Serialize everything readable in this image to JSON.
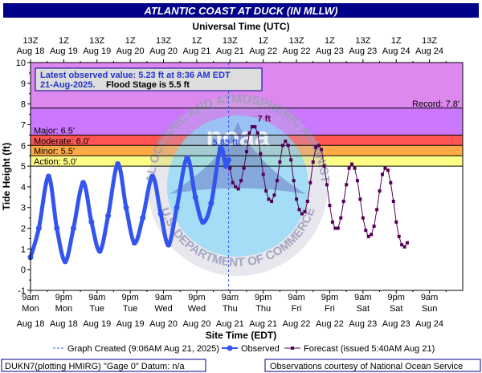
{
  "header": {
    "title": "ATLANTIC COAST AT DUCK (IN MLLW)",
    "top_axis_title": "Universal Time (UTC)",
    "bottom_axis_title": "Site Time (EDT)",
    "y_axis_title": "Tide Height (ft)"
  },
  "info_box": {
    "line1": "Latest observed value: 5.23 ft at 8:36 AM EDT",
    "line2_date": "21-Aug-2025.",
    "line2_flood": "Flood Stage is 5.5 ft"
  },
  "legend": {
    "graph_created": "Graph Created (9:06AM Aug 21, 2025)",
    "observed": "Observed",
    "forecast": "Forecast (issued 5:40AM Aug 21)"
  },
  "footer": {
    "left": "DUKN7(plotting HMIRG) \"Gage 0\" Datum: n/a",
    "right": "Observations courtesy of National Ocean Service"
  },
  "watermark": {
    "outer_text": "NATIONAL OCEANIC AND ATMOSPHERIC ADMINISTRATION",
    "inner_text": "U.S. DEPARTMENT OF COMMERCE",
    "logo": "noaa"
  },
  "colors": {
    "record_band": "#dd88ee",
    "major_band": "#cc77ff",
    "moderate_band": "#ff5555",
    "minor_band": "#ffaa44",
    "action_band": "#ffff88",
    "observed": "#3355ee",
    "forecast": "#550055",
    "plot_bg": "#ffffff"
  },
  "chart_data": {
    "type": "line",
    "x_unit": "hours since Aug 18 09:00 EDT",
    "xlim": [
      0,
      156
    ],
    "ylim": [
      -1,
      10
    ],
    "y_ticks": [
      -1,
      0,
      1,
      2,
      3,
      4,
      5,
      6,
      7,
      8,
      9,
      10
    ],
    "grid": false,
    "legend_placement": "bottom",
    "top_ticks": [
      {
        "t1": "13Z",
        "t2": "Aug 18"
      },
      {
        "t1": "1Z",
        "t2": "Aug 19"
      },
      {
        "t1": "13Z",
        "t2": "Aug 19"
      },
      {
        "t1": "1Z",
        "t2": "Aug 20"
      },
      {
        "t1": "13Z",
        "t2": "Aug 20"
      },
      {
        "t1": "1Z",
        "t2": "Aug 21"
      },
      {
        "t1": "13Z",
        "t2": "Aug 21"
      },
      {
        "t1": "1Z",
        "t2": "Aug 22"
      },
      {
        "t1": "13Z",
        "t2": "Aug 22"
      },
      {
        "t1": "1Z",
        "t2": "Aug 23"
      },
      {
        "t1": "13Z",
        "t2": "Aug 23"
      },
      {
        "t1": "1Z",
        "t2": "Aug 24"
      },
      {
        "t1": "13Z",
        "t2": "Aug 24"
      }
    ],
    "bottom_ticks": [
      {
        "t1": "9am",
        "t2": "Mon",
        "t3": "Aug 18"
      },
      {
        "t1": "9pm",
        "t2": "Mon",
        "t3": "Aug 18"
      },
      {
        "t1": "9am",
        "t2": "Tue",
        "t3": "Aug 19"
      },
      {
        "t1": "9pm",
        "t2": "Tue",
        "t3": "Aug 19"
      },
      {
        "t1": "9am",
        "t2": "Wed",
        "t3": "Aug 20"
      },
      {
        "t1": "9pm",
        "t2": "Wed",
        "t3": "Aug 20"
      },
      {
        "t1": "9am",
        "t2": "Thu",
        "t3": "Aug 21"
      },
      {
        "t1": "9pm",
        "t2": "Thu",
        "t3": "Aug 21"
      },
      {
        "t1": "9am",
        "t2": "Fri",
        "t3": "Aug 22"
      },
      {
        "t1": "9pm",
        "t2": "Fri",
        "t3": "Aug 22"
      },
      {
        "t1": "9am",
        "t2": "Sat",
        "t3": "Aug 23"
      },
      {
        "t1": "9pm",
        "t2": "Sat",
        "t3": "Aug 23"
      },
      {
        "t1": "9am",
        "t2": "Sun",
        "t3": "Aug 24"
      }
    ],
    "stages": [
      {
        "name": "Record: 7.8'",
        "value": 7.8,
        "color_key": "record_band"
      },
      {
        "name": "Major: 6.5'",
        "value": 6.5,
        "color_key": "major_band"
      },
      {
        "name": "Moderate: 6.0'",
        "value": 6.0,
        "color_key": "moderate_band"
      },
      {
        "name": "Minor: 5.5'",
        "value": 5.5,
        "color_key": "minor_band"
      },
      {
        "name": "Action: 5.0'",
        "value": 5.0,
        "color_key": "action_band"
      }
    ],
    "annotations": [
      {
        "text": "5.85 ft",
        "x": 70.3,
        "y": 5.85,
        "series": "observed"
      },
      {
        "text": "7 ft",
        "x": 84.3,
        "y": 7.0,
        "series": "forecast"
      }
    ],
    "series": [
      {
        "name": "Observed",
        "color_key": "observed",
        "points": [
          [
            0,
            0.6
          ],
          [
            3,
            2.0
          ],
          [
            6.5,
            4.5
          ],
          [
            9.5,
            2.0
          ],
          [
            12.5,
            0.4
          ],
          [
            15.5,
            2.0
          ],
          [
            19,
            4.2
          ],
          [
            22,
            2.3
          ],
          [
            25,
            0.9
          ],
          [
            28,
            2.6
          ],
          [
            31.5,
            5.1
          ],
          [
            34.5,
            3.0
          ],
          [
            37.5,
            1.3
          ],
          [
            40.5,
            2.5
          ],
          [
            44,
            4.5
          ],
          [
            47,
            2.7
          ],
          [
            49.8,
            1.2
          ],
          [
            52.8,
            3.0
          ],
          [
            56.5,
            5.4
          ],
          [
            59.5,
            3.5
          ],
          [
            62.2,
            2.3
          ],
          [
            65.2,
            3.2
          ],
          [
            68.5,
            5.85
          ],
          [
            70.5,
            5.0
          ],
          [
            71.5,
            5.3
          ]
        ]
      },
      {
        "name": "Forecast",
        "color_key": "forecast",
        "points": [
          [
            72,
            4.9
          ],
          [
            73,
            4.2
          ],
          [
            74,
            4.0
          ],
          [
            75,
            3.9
          ],
          [
            76,
            4.3
          ],
          [
            77,
            4.9
          ],
          [
            78,
            5.7
          ],
          [
            79,
            6.6
          ],
          [
            80,
            6.9
          ],
          [
            81,
            6.9
          ],
          [
            82,
            6.6
          ],
          [
            83,
            5.6
          ],
          [
            84,
            4.6
          ],
          [
            85,
            3.8
          ],
          [
            86,
            3.4
          ],
          [
            87,
            3.3
          ],
          [
            88,
            3.6
          ],
          [
            89,
            4.3
          ],
          [
            90,
            5.2
          ],
          [
            91,
            6.0
          ],
          [
            92,
            6.2
          ],
          [
            93,
            6.0
          ],
          [
            94,
            5.3
          ],
          [
            95,
            4.3
          ],
          [
            96,
            3.4
          ],
          [
            97,
            2.9
          ],
          [
            98,
            2.7
          ],
          [
            99,
            2.8
          ],
          [
            100,
            3.3
          ],
          [
            101,
            4.2
          ],
          [
            102,
            5.2
          ],
          [
            103,
            5.9
          ],
          [
            104,
            6.0
          ],
          [
            105,
            5.8
          ],
          [
            106,
            5.0
          ],
          [
            107,
            4.1
          ],
          [
            108,
            3.1
          ],
          [
            109,
            2.3
          ],
          [
            110,
            2.0
          ],
          [
            111,
            2.0
          ],
          [
            112,
            2.5
          ],
          [
            113,
            3.3
          ],
          [
            114,
            4.1
          ],
          [
            115,
            4.9
          ],
          [
            116,
            5.1
          ],
          [
            117,
            4.9
          ],
          [
            118,
            4.3
          ],
          [
            119,
            3.4
          ],
          [
            120,
            2.5
          ],
          [
            121,
            1.9
          ],
          [
            122,
            1.6
          ],
          [
            123,
            1.7
          ],
          [
            124,
            2.1
          ],
          [
            125,
            2.9
          ],
          [
            126,
            3.8
          ],
          [
            127,
            4.6
          ],
          [
            128,
            4.9
          ],
          [
            129,
            4.8
          ],
          [
            130,
            4.2
          ],
          [
            131,
            3.3
          ],
          [
            132,
            2.3
          ],
          [
            133,
            1.6
          ],
          [
            134,
            1.2
          ],
          [
            135,
            1.1
          ],
          [
            136,
            1.3
          ]
        ]
      }
    ]
  }
}
